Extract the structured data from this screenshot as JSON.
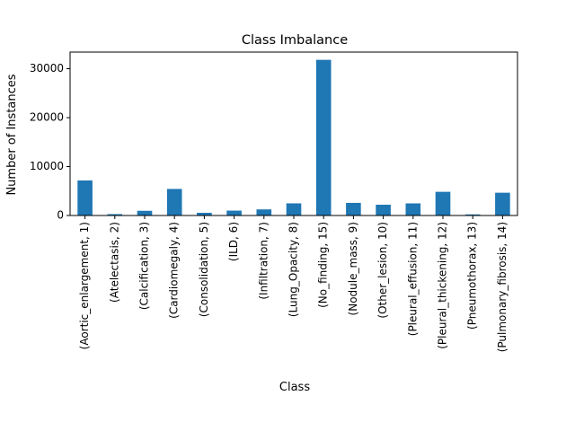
{
  "chart_data": {
    "type": "bar",
    "title": "Class Imbalance",
    "xlabel": "Class",
    "ylabel": "Number of Instances",
    "categories": [
      "(Aortic_enlargement, 1)",
      "(Atelectasis, 2)",
      "(Calcification, 3)",
      "(Cardiomegaly, 4)",
      "(Consolidation, 5)",
      "(ILD, 6)",
      "(Infiltration, 7)",
      "(Lung_Opacity, 8)",
      "(No_finding, 15)",
      "(Nodule_mass, 9)",
      "(Other_lesion, 10)",
      "(Pleural_effusion, 11)",
      "(Pleural_thickening, 12)",
      "(Pneumothorax, 13)",
      "(Pulmonary_fibrosis, 14)"
    ],
    "values": [
      7162,
      279,
      960,
      5427,
      556,
      1000,
      1247,
      2483,
      31818,
      2580,
      2203,
      2476,
      4842,
      226,
      4655
    ],
    "ylim": [
      0,
      33400
    ],
    "yticks": [
      0,
      10000,
      20000,
      30000
    ],
    "grid": false,
    "bar_color": "#1f77b4"
  }
}
